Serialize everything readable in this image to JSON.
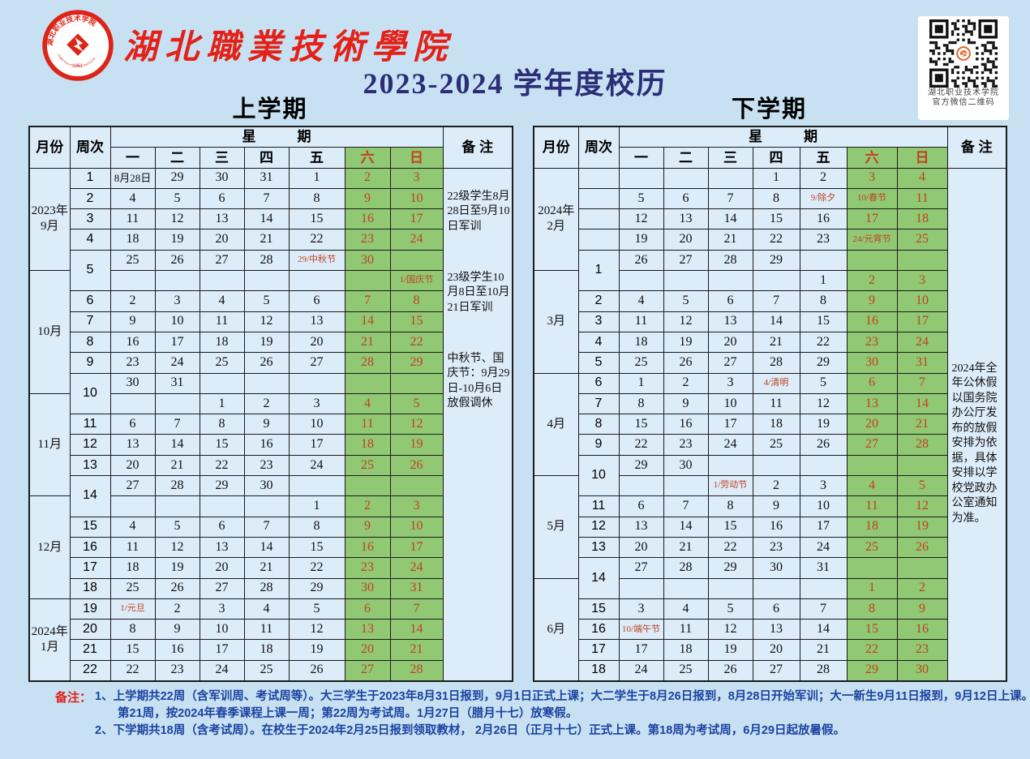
{
  "header": {
    "school_name": "湖北職業技術學院",
    "title": "2023-2024 学年度校历",
    "logo_arc_text": "湖北职业技术学院",
    "logo_arc_text_en": "HUBEI POLYTECHNIC INSTITUTE",
    "logo_year": "1951",
    "qr_caption_line1": "湖北职业技术学院",
    "qr_caption_line2": "官方微信二维码"
  },
  "colors": {
    "page_background": "#c7e1f3",
    "cell_background": "#dcecf9",
    "weekend_green": "#90c873",
    "holiday_red": "#c4401f",
    "title_navy": "#2b2d77",
    "school_red": "#e32119",
    "note_blue": "#1c42a0"
  },
  "table_headers": {
    "month": "月份",
    "week": "周次",
    "xingqi": "星　　　期",
    "remark": "备 注",
    "days": [
      "一",
      "二",
      "三",
      "四",
      "五",
      "六",
      "日"
    ]
  },
  "semester1": {
    "title": "上学期",
    "months": [
      {
        "lines": [
          "2023年",
          "9月"
        ],
        "span": 5
      },
      {
        "lines": [
          "10月"
        ],
        "span": 6
      },
      {
        "lines": [
          "11月"
        ],
        "span": 5
      },
      {
        "lines": [
          "12月"
        ],
        "span": 5
      },
      {
        "lines": [
          "2024年",
          "1月"
        ],
        "span": 4
      }
    ],
    "weeks": [
      {
        "num": "1",
        "rows": [
          [
            "8月28日",
            "29",
            "30",
            "31",
            "1",
            "2",
            "3"
          ]
        ]
      },
      {
        "num": "2",
        "rows": [
          [
            "4",
            "5",
            "6",
            "7",
            "8",
            "9",
            "10"
          ]
        ]
      },
      {
        "num": "3",
        "rows": [
          [
            "11",
            "12",
            "13",
            "14",
            "15",
            "16",
            "17"
          ]
        ]
      },
      {
        "num": "4",
        "rows": [
          [
            "18",
            "19",
            "20",
            "21",
            "22",
            "23",
            "24"
          ]
        ]
      },
      {
        "num": "5",
        "rows": [
          [
            "25",
            "26",
            "27",
            "28",
            "29/中秋节",
            "30",
            ""
          ],
          [
            "",
            "",
            "",
            "",
            "",
            "",
            "1/国庆节"
          ]
        ]
      },
      {
        "num": "6",
        "rows": [
          [
            "2",
            "3",
            "4",
            "5",
            "6",
            "7",
            "8"
          ]
        ]
      },
      {
        "num": "7",
        "rows": [
          [
            "9",
            "10",
            "11",
            "12",
            "13",
            "14",
            "15"
          ]
        ]
      },
      {
        "num": "8",
        "rows": [
          [
            "16",
            "17",
            "18",
            "19",
            "20",
            "21",
            "22"
          ]
        ]
      },
      {
        "num": "9",
        "rows": [
          [
            "23",
            "24",
            "25",
            "26",
            "27",
            "28",
            "29"
          ]
        ]
      },
      {
        "num": "10",
        "rows": [
          [
            "30",
            "31",
            "",
            "",
            "",
            "",
            ""
          ],
          [
            "",
            "",
            "1",
            "2",
            "3",
            "4",
            "5"
          ]
        ]
      },
      {
        "num": "11",
        "rows": [
          [
            "6",
            "7",
            "8",
            "9",
            "10",
            "11",
            "12"
          ]
        ]
      },
      {
        "num": "12",
        "rows": [
          [
            "13",
            "14",
            "15",
            "16",
            "17",
            "18",
            "19"
          ]
        ]
      },
      {
        "num": "13",
        "rows": [
          [
            "20",
            "21",
            "22",
            "23",
            "24",
            "25",
            "26"
          ]
        ]
      },
      {
        "num": "14",
        "rows": [
          [
            "27",
            "28",
            "29",
            "30",
            "",
            "",
            ""
          ],
          [
            "",
            "",
            "",
            "",
            "1",
            "2",
            "3"
          ]
        ]
      },
      {
        "num": "15",
        "rows": [
          [
            "4",
            "5",
            "6",
            "7",
            "8",
            "9",
            "10"
          ]
        ]
      },
      {
        "num": "16",
        "rows": [
          [
            "11",
            "12",
            "13",
            "14",
            "15",
            "16",
            "17"
          ]
        ]
      },
      {
        "num": "17",
        "rows": [
          [
            "18",
            "19",
            "20",
            "21",
            "22",
            "23",
            "24"
          ]
        ]
      },
      {
        "num": "18",
        "rows": [
          [
            "25",
            "26",
            "27",
            "28",
            "29",
            "30",
            "31"
          ]
        ]
      },
      {
        "num": "19",
        "rows": [
          [
            "1/元旦",
            "2",
            "3",
            "4",
            "5",
            "6",
            "7"
          ]
        ]
      },
      {
        "num": "20",
        "rows": [
          [
            "8",
            "9",
            "10",
            "11",
            "12",
            "13",
            "14"
          ]
        ]
      },
      {
        "num": "21",
        "rows": [
          [
            "15",
            "16",
            "17",
            "18",
            "19",
            "20",
            "21"
          ]
        ]
      },
      {
        "num": "22",
        "rows": [
          [
            "22",
            "23",
            "24",
            "25",
            "26",
            "27",
            "28"
          ]
        ]
      }
    ],
    "remarks": [
      "22级学生8月28日至9月10日军训",
      "23级学生10月8日至10月21日军训",
      "中秋节、国庆节：9月29日-10月6日放假调休"
    ]
  },
  "semester2": {
    "title": "下学期",
    "months": [
      {
        "lines": [
          "2024年",
          "2月"
        ],
        "span": 5
      },
      {
        "lines": [
          "3月"
        ],
        "span": 5
      },
      {
        "lines": [
          "4月"
        ],
        "span": 5
      },
      {
        "lines": [
          "5月"
        ],
        "span": 5
      },
      {
        "lines": [
          "6月"
        ],
        "span": 5
      }
    ],
    "weeks": [
      {
        "num": "",
        "rows": [
          [
            "",
            "",
            "",
            "1",
            "2",
            "3",
            "4"
          ]
        ]
      },
      {
        "num": "",
        "rows": [
          [
            "5",
            "6",
            "7",
            "8",
            "9/除夕",
            "10/春节",
            "11"
          ]
        ]
      },
      {
        "num": "",
        "rows": [
          [
            "12",
            "13",
            "14",
            "15",
            "16",
            "17",
            "18"
          ]
        ]
      },
      {
        "num": "",
        "rows": [
          [
            "19",
            "20",
            "21",
            "22",
            "23",
            "24/元宵节",
            "25"
          ]
        ]
      },
      {
        "num": "1",
        "rows": [
          [
            "26",
            "27",
            "28",
            "29",
            "",
            "",
            ""
          ],
          [
            "",
            "",
            "",
            "",
            "1",
            "2",
            "3"
          ]
        ]
      },
      {
        "num": "2",
        "rows": [
          [
            "4",
            "5",
            "6",
            "7",
            "8",
            "9",
            "10"
          ]
        ]
      },
      {
        "num": "3",
        "rows": [
          [
            "11",
            "12",
            "13",
            "14",
            "15",
            "16",
            "17"
          ]
        ]
      },
      {
        "num": "4",
        "rows": [
          [
            "18",
            "19",
            "20",
            "21",
            "22",
            "23",
            "24"
          ]
        ]
      },
      {
        "num": "5",
        "rows": [
          [
            "25",
            "26",
            "27",
            "28",
            "29",
            "30",
            "31"
          ]
        ]
      },
      {
        "num": "6",
        "rows": [
          [
            "1",
            "2",
            "3",
            "4/清明",
            "5",
            "6",
            "7"
          ]
        ]
      },
      {
        "num": "7",
        "rows": [
          [
            "8",
            "9",
            "10",
            "11",
            "12",
            "13",
            "14"
          ]
        ]
      },
      {
        "num": "8",
        "rows": [
          [
            "15",
            "16",
            "17",
            "18",
            "19",
            "20",
            "21"
          ]
        ]
      },
      {
        "num": "9",
        "rows": [
          [
            "22",
            "23",
            "24",
            "25",
            "26",
            "27",
            "28"
          ]
        ]
      },
      {
        "num": "10",
        "rows": [
          [
            "29",
            "30",
            "",
            "",
            "",
            "",
            ""
          ],
          [
            "",
            "",
            "1/劳动节",
            "2",
            "3",
            "4",
            "5"
          ]
        ]
      },
      {
        "num": "11",
        "rows": [
          [
            "6",
            "7",
            "8",
            "9",
            "10",
            "11",
            "12"
          ]
        ]
      },
      {
        "num": "12",
        "rows": [
          [
            "13",
            "14",
            "15",
            "16",
            "17",
            "18",
            "19"
          ]
        ]
      },
      {
        "num": "13",
        "rows": [
          [
            "20",
            "21",
            "22",
            "23",
            "24",
            "25",
            "26"
          ]
        ]
      },
      {
        "num": "14",
        "rows": [
          [
            "27",
            "28",
            "29",
            "30",
            "31",
            "",
            ""
          ],
          [
            "",
            "",
            "",
            "",
            "",
            "1",
            "2"
          ]
        ]
      },
      {
        "num": "15",
        "rows": [
          [
            "3",
            "4",
            "5",
            "6",
            "7",
            "8",
            "9"
          ]
        ]
      },
      {
        "num": "16",
        "rows": [
          [
            "10/端午节",
            "11",
            "12",
            "13",
            "14",
            "15",
            "16"
          ]
        ]
      },
      {
        "num": "17",
        "rows": [
          [
            "17",
            "18",
            "19",
            "20",
            "21",
            "22",
            "23"
          ]
        ]
      },
      {
        "num": "18",
        "rows": [
          [
            "24",
            "25",
            "26",
            "27",
            "28",
            "29",
            "30"
          ]
        ]
      }
    ],
    "remarks": [
      "2024年全年公休假以国务院办公厅发布的放假安排为依据，具体安排以学校党政办公室通知为准。"
    ]
  },
  "footnotes": {
    "label": "备注：",
    "line1": "1、上学期共22周（含军训周、考试周等）。大三学生于2023年8月31日报到，9月1日正式上课；大二学生于8月26日报到，8月28日开始军训；大一新生9月11日报到，9月12日上课。",
    "line2": "第21周，按2024年春季课程上课一周；第22周为考试周。1月27日（腊月十七）放寒假。",
    "line3": "2、下学期共18周（含考试周）。在校生于2024年2月25日报到领取教材， 2月26日（正月十七）正式上课。第18周为考试周，6月29日起放暑假。"
  }
}
